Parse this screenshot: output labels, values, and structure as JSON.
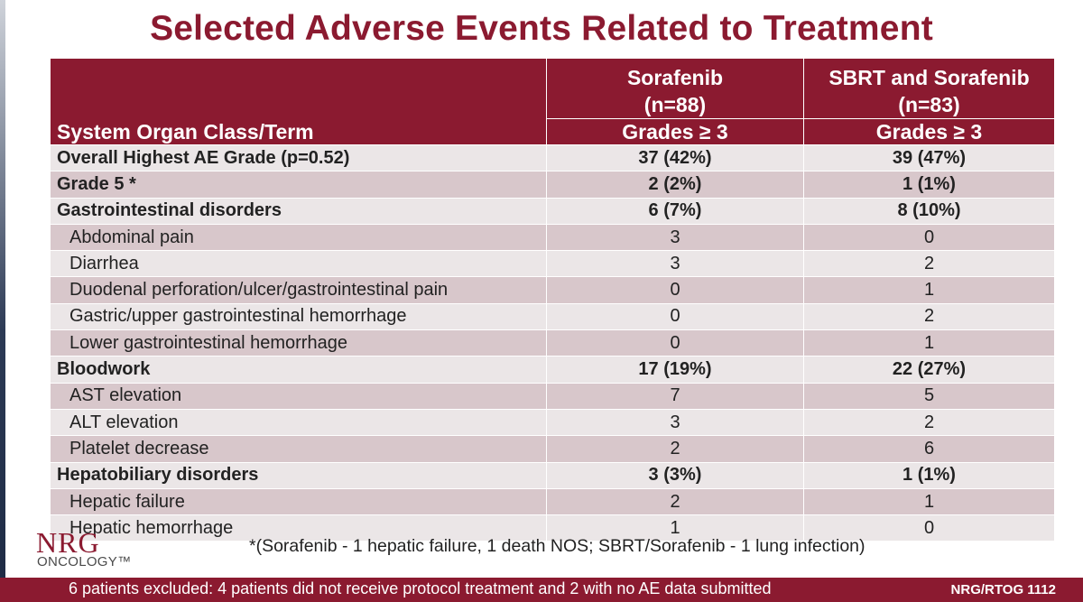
{
  "slide": {
    "title": "Selected Adverse Events Related to Treatment",
    "footnote": "*(Sorafenib - 1 hepatic failure, 1 death NOS; SBRT/Sorafenib - 1 lung infection)",
    "bottom_note": "6 patients excluded: 4 patients did not receive protocol treatment and 2 with no AE data submitted",
    "study_id": "NRG/RTOG 1112"
  },
  "logo": {
    "mark": "NRG",
    "sub": "ONCOLOGY™"
  },
  "table": {
    "headers": {
      "term": "System Organ Class/Term",
      "arm1_name": "Sorafenib",
      "arm1_n": "(n=88)",
      "arm2_name": "SBRT and Sorafenib",
      "arm2_n": "(n=83)",
      "grades_label": "Grades ≥ 3"
    },
    "rows": [
      {
        "term": "Overall Highest AE Grade (p=0.52)",
        "arm1": "37 (42%)",
        "arm2": "39 (47%)",
        "level": "category"
      },
      {
        "term": "Grade 5 *",
        "arm1": "2 (2%)",
        "arm2": "1 (1%)",
        "level": "category"
      },
      {
        "term": "Gastrointestinal disorders",
        "arm1": "6 (7%)",
        "arm2": "8 (10%)",
        "level": "category"
      },
      {
        "term": "Abdominal pain",
        "arm1": "3",
        "arm2": "0",
        "level": "sub"
      },
      {
        "term": "Diarrhea",
        "arm1": "3",
        "arm2": "2",
        "level": "sub"
      },
      {
        "term": "Duodenal perforation/ulcer/gastrointestinal pain",
        "arm1": "0",
        "arm2": "1",
        "level": "sub"
      },
      {
        "term": "Gastric/upper gastrointestinal hemorrhage",
        "arm1": "0",
        "arm2": "2",
        "level": "sub"
      },
      {
        "term": "Lower gastrointestinal hemorrhage",
        "arm1": "0",
        "arm2": "1",
        "level": "sub"
      },
      {
        "term": "Bloodwork",
        "arm1": "17 (19%)",
        "arm2": "22 (27%)",
        "level": "category"
      },
      {
        "term": "AST elevation",
        "arm1": "7",
        "arm2": "5",
        "level": "sub"
      },
      {
        "term": "ALT elevation",
        "arm1": "3",
        "arm2": "2",
        "level": "sub"
      },
      {
        "term": "Platelet decrease",
        "arm1": "2",
        "arm2": "6",
        "level": "sub"
      },
      {
        "term": "Hepatobiliary disorders",
        "arm1": "3 (3%)",
        "arm2": "1 (1%)",
        "level": "category"
      },
      {
        "term": "Hepatic failure",
        "arm1": "2",
        "arm2": "1",
        "level": "sub"
      },
      {
        "term": "Hepatic hemorrhage",
        "arm1": "1",
        "arm2": "0",
        "level": "sub"
      }
    ]
  },
  "colors": {
    "brand": "#8b1a30",
    "row_light": "#ebe6e7",
    "row_dark": "#d8c7cb"
  }
}
